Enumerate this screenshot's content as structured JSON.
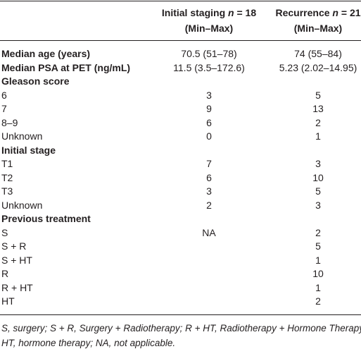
{
  "table": {
    "header": [
      null,
      {
        "title": "Initial staging",
        "n_symbol": "n",
        "n_value": "= 18",
        "sub": "(Min–Max)"
      },
      {
        "title": "Recurrence",
        "n_symbol": "n",
        "n_value": "= 21",
        "sub": "(Min–Max)"
      }
    ],
    "rows": [
      {
        "cells": [
          "Median age (years)",
          "70.5 (51–78)",
          "74 (55–84)"
        ],
        "bold": true
      },
      {
        "cells": [
          "Median PSA at PET (ng/mL)",
          "11.5 (3.5–172.6)",
          "5.23 (2.02–14.95)"
        ],
        "bold": true
      },
      {
        "cells": [
          "Gleason score",
          null,
          null
        ],
        "bold": true
      },
      {
        "cells": [
          "6",
          "3",
          "5"
        ]
      },
      {
        "cells": [
          "7",
          "9",
          "13"
        ]
      },
      {
        "cells": [
          "8–9",
          "6",
          "2"
        ]
      },
      {
        "cells": [
          "Unknown",
          "0",
          "1"
        ]
      },
      {
        "cells": [
          "Initial stage",
          null,
          null
        ],
        "bold": true
      },
      {
        "cells": [
          "T1",
          "7",
          "3"
        ]
      },
      {
        "cells": [
          "T2",
          "6",
          "10"
        ]
      },
      {
        "cells": [
          "T3",
          "3",
          "5"
        ]
      },
      {
        "cells": [
          "Unknown",
          "2",
          "3"
        ]
      },
      {
        "cells": [
          "Previous treatment",
          null,
          null
        ],
        "bold": true
      },
      {
        "cells": [
          "S",
          "NA",
          "2"
        ]
      },
      {
        "cells": [
          "S + R",
          null,
          "5"
        ]
      },
      {
        "cells": [
          "S + HT",
          null,
          "1"
        ]
      },
      {
        "cells": [
          "R",
          null,
          "10"
        ]
      },
      {
        "cells": [
          "R + HT",
          null,
          "1"
        ]
      },
      {
        "cells": [
          "HT",
          null,
          "2"
        ]
      }
    ]
  },
  "footnote": [
    "S, surgery; S + R, Surgery + Radiotherapy; R + HT, Radiotherapy + Hormone Therapy;",
    "HT, hormone therapy; NA, not applicable."
  ]
}
